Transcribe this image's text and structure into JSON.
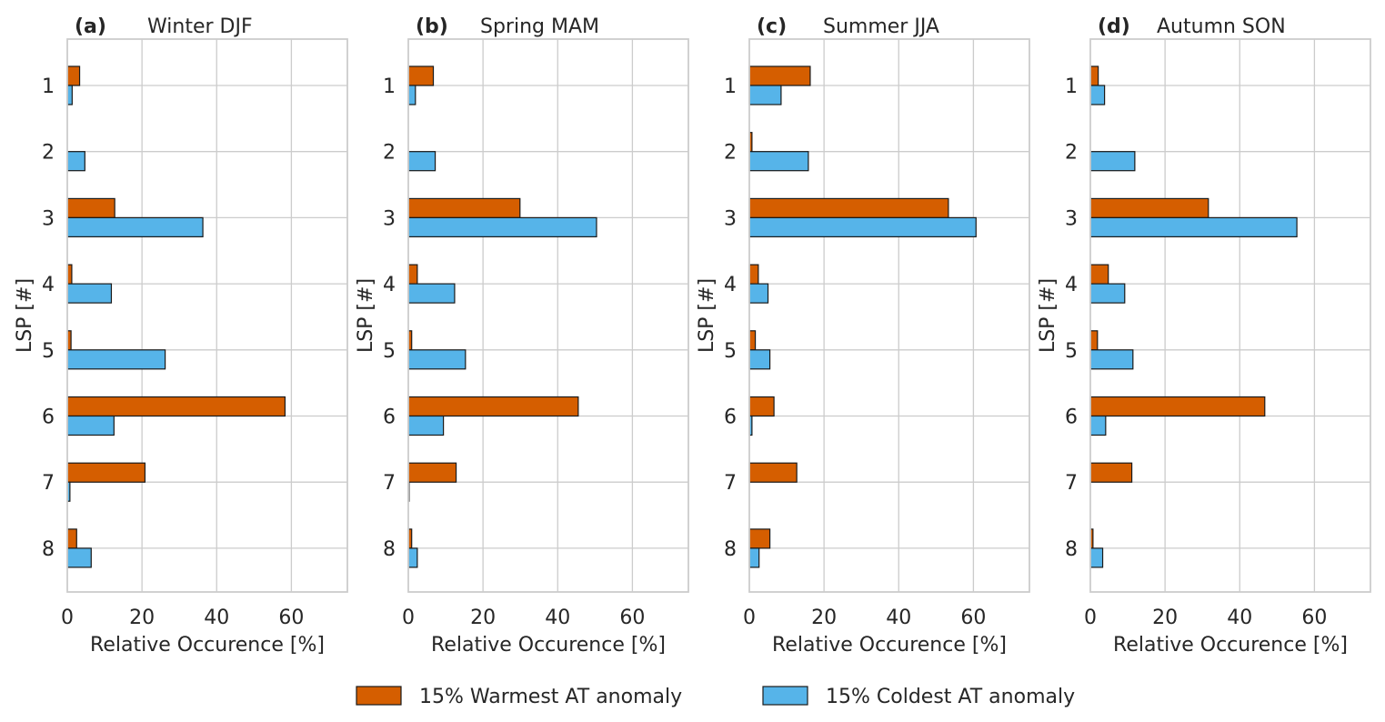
{
  "chart_data": {
    "type": "bar",
    "orientation": "horizontal",
    "ylabel": "LSP [#]",
    "xlabel": "Relative Occurence [%]",
    "xlim": [
      0,
      75
    ],
    "xticks": [
      0,
      20,
      40,
      60
    ],
    "categories": [
      "1",
      "2",
      "3",
      "4",
      "5",
      "6",
      "7",
      "8"
    ],
    "grid": true,
    "legend": {
      "placement": "bottom-center",
      "entries": [
        {
          "name": "15% Warmest AT anomaly",
          "color": "#d55e00"
        },
        {
          "name": "15% Coldest AT anomaly",
          "color": "#56b4e9"
        }
      ]
    },
    "panels": [
      {
        "letter": "(a)",
        "title": "Winter DJF",
        "series": [
          {
            "name": "15% Warmest AT anomaly",
            "values": [
              3.3,
              0.0,
              12.7,
              1.2,
              1.0,
              58.3,
              20.8,
              2.5
            ]
          },
          {
            "name": "15% Coldest AT anomaly",
            "values": [
              1.3,
              4.7,
              36.3,
              11.8,
              26.2,
              12.5,
              0.7,
              6.4
            ]
          }
        ]
      },
      {
        "letter": "(b)",
        "title": "Spring MAM",
        "series": [
          {
            "name": "15% Warmest AT anomaly",
            "values": [
              6.7,
              0.0,
              29.9,
              2.4,
              0.9,
              45.5,
              12.8,
              0.9
            ]
          },
          {
            "name": "15% Coldest AT anomaly",
            "values": [
              1.9,
              7.2,
              50.4,
              12.4,
              15.3,
              9.4,
              0.2,
              2.4
            ]
          }
        ]
      },
      {
        "letter": "(c)",
        "title": "Summer JJA",
        "series": [
          {
            "name": "15% Warmest AT anomaly",
            "values": [
              16.3,
              0.7,
              53.3,
              2.4,
              1.6,
              6.6,
              12.7,
              5.5
            ]
          },
          {
            "name": "15% Coldest AT anomaly",
            "values": [
              8.5,
              15.8,
              60.7,
              5.0,
              5.5,
              0.7,
              0.0,
              2.6
            ]
          }
        ]
      },
      {
        "letter": "(d)",
        "title": "Autumn SON",
        "series": [
          {
            "name": "15% Warmest AT anomaly",
            "values": [
              2.1,
              0.0,
              31.6,
              4.8,
              1.9,
              46.7,
              11.1,
              0.7
            ]
          },
          {
            "name": "15% Coldest AT anomaly",
            "values": [
              3.8,
              11.9,
              55.3,
              9.2,
              11.4,
              4.1,
              0.0,
              3.3
            ]
          }
        ]
      }
    ]
  }
}
